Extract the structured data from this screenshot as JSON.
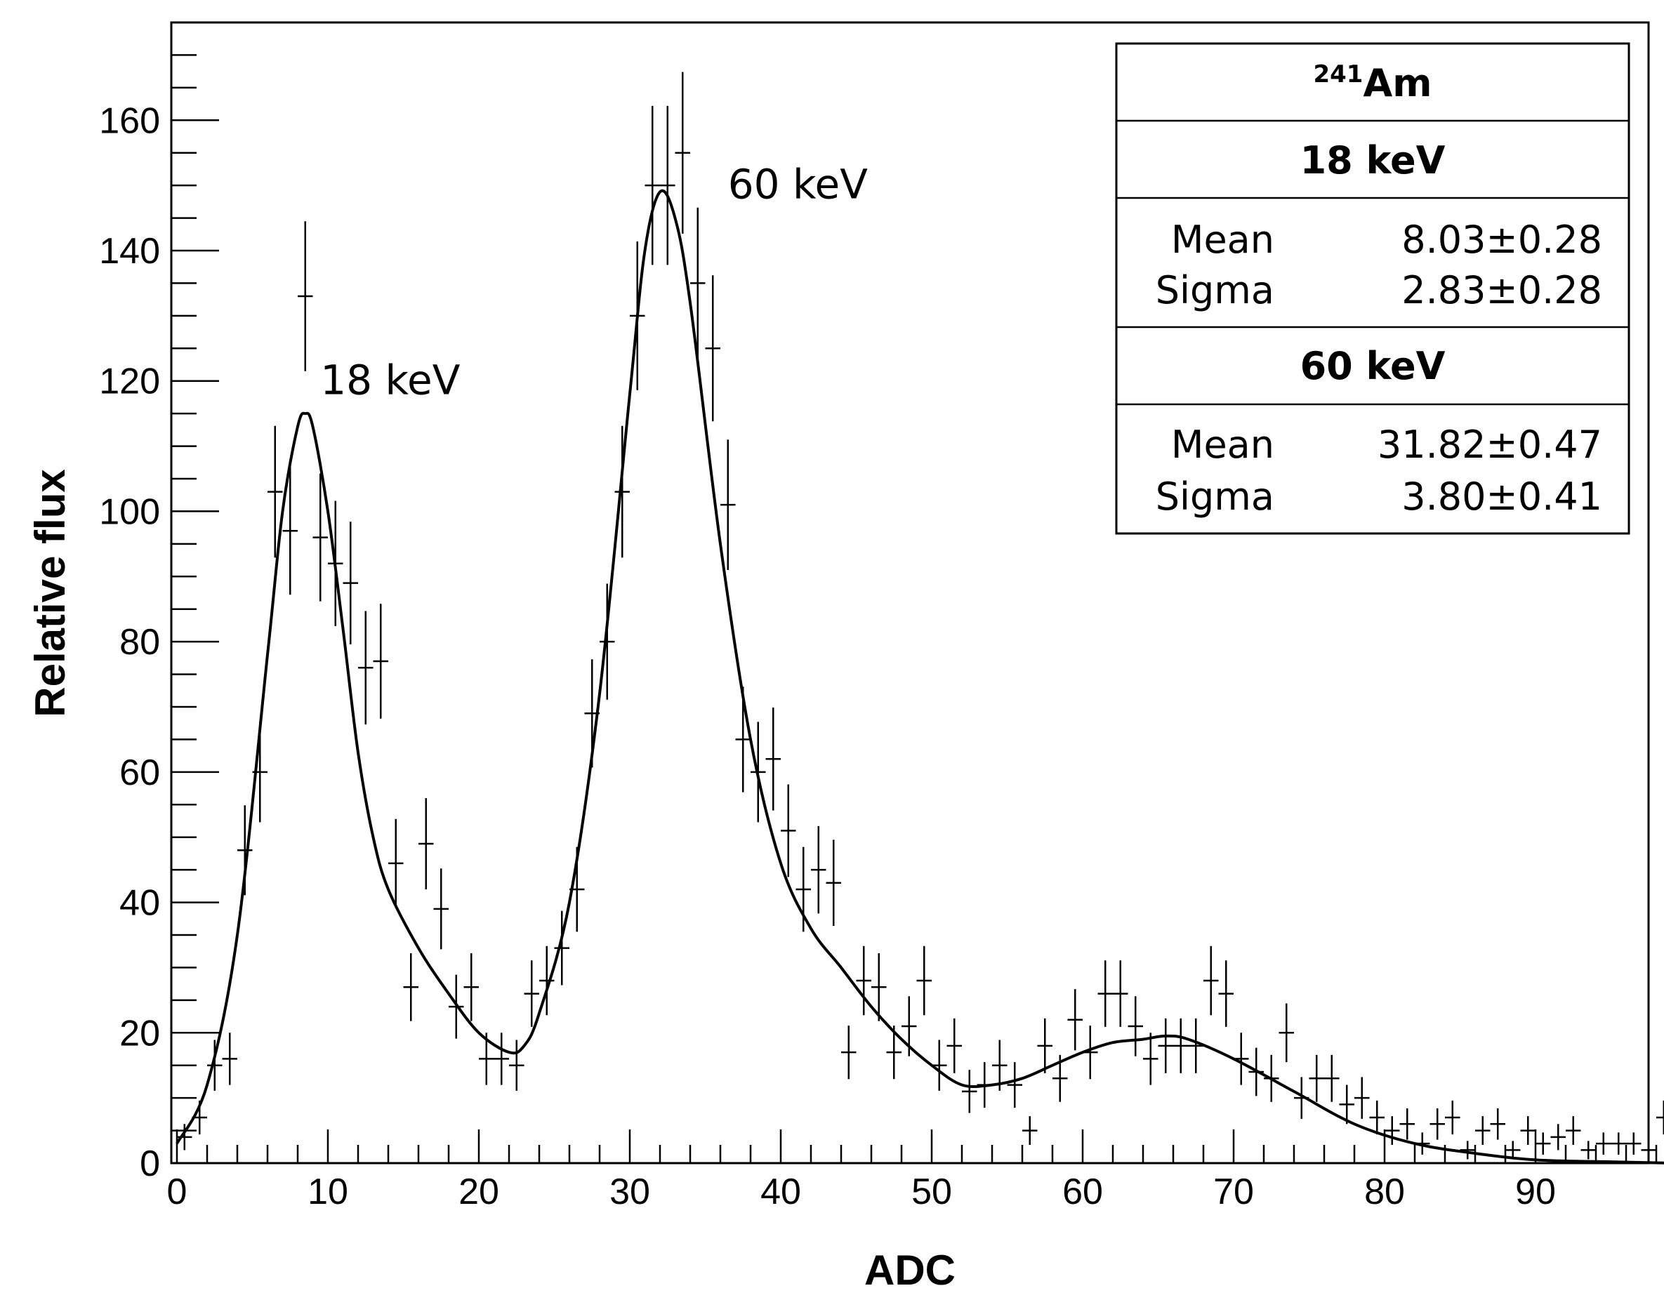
{
  "chart_data": {
    "type": "scatter",
    "title": "",
    "xlabel": "ADC",
    "ylabel": "Relative flux",
    "xlim": [
      0,
      99
    ],
    "ylim": [
      0,
      175
    ],
    "x_ticks": [
      0,
      10,
      20,
      30,
      40,
      50,
      60,
      70,
      80,
      90
    ],
    "y_ticks": [
      0,
      20,
      40,
      60,
      80,
      100,
      120,
      140,
      160
    ],
    "series": [
      {
        "name": "data",
        "style": "error-bar crosses",
        "x": [
          0.5,
          1.5,
          2.5,
          3.5,
          4.5,
          5.5,
          6.5,
          7.5,
          8.5,
          9.5,
          10.5,
          11.5,
          12.5,
          13.5,
          14.5,
          15.5,
          16.5,
          17.5,
          18.5,
          19.5,
          20.5,
          21.5,
          22.5,
          23.5,
          24.5,
          25.5,
          26.5,
          27.5,
          28.5,
          29.5,
          30.5,
          31.5,
          32.5,
          33.5,
          34.5,
          35.5,
          36.5,
          37.5,
          38.5,
          39.5,
          40.5,
          41.5,
          42.5,
          43.5,
          44.5,
          45.5,
          46.5,
          47.5,
          48.5,
          49.5,
          50.5,
          51.5,
          52.5,
          53.5,
          54.5,
          55.5,
          56.5,
          57.5,
          58.5,
          59.5,
          60.5,
          61.5,
          62.5,
          63.5,
          64.5,
          65.5,
          66.5,
          67.5,
          68.5,
          69.5,
          70.5,
          71.5,
          72.5,
          73.5,
          74.5,
          75.5,
          76.5,
          77.5,
          78.5,
          79.5,
          80.5,
          81.5,
          82.5,
          83.5,
          84.5,
          85.5,
          86.5,
          87.5,
          88.5,
          89.5,
          90.5,
          91.5,
          92.5,
          93.5,
          94.5,
          95.5,
          96.5,
          97.5,
          98.5
        ],
        "y": [
          4,
          7,
          15,
          16,
          48,
          60,
          103,
          97,
          133,
          96,
          92,
          89,
          76,
          77,
          46,
          27,
          49,
          39,
          24,
          27,
          16,
          16,
          15,
          26,
          28,
          33,
          42,
          69,
          80,
          103,
          130,
          150,
          150,
          155,
          135,
          125,
          101,
          65,
          60,
          62,
          51,
          42,
          45,
          43,
          17,
          28,
          27,
          17,
          21,
          28,
          15,
          18,
          11,
          12,
          15,
          12,
          5,
          18,
          13,
          22,
          17,
          26,
          26,
          21,
          16,
          18,
          18,
          18,
          28,
          26,
          16,
          14,
          13,
          20,
          10,
          13,
          13,
          9,
          10,
          7,
          5,
          6,
          3,
          6,
          7,
          2,
          5,
          6,
          2,
          5,
          3,
          4,
          5,
          2,
          3,
          3,
          3,
          2,
          7
        ],
        "yerr": [
          2,
          2.6,
          3.9,
          4,
          6.9,
          7.7,
          10.1,
          9.8,
          11.5,
          9.8,
          9.6,
          9.4,
          8.7,
          8.8,
          6.8,
          5.2,
          7,
          6.2,
          4.9,
          5.2,
          4,
          4,
          3.9,
          5.1,
          5.3,
          5.7,
          6.5,
          8.3,
          8.9,
          10.1,
          11.4,
          12.2,
          12.2,
          12.4,
          11.6,
          11.2,
          10,
          8.1,
          7.7,
          7.9,
          7.1,
          6.5,
          6.7,
          6.6,
          4.1,
          5.3,
          5.2,
          4.1,
          4.6,
          5.3,
          3.9,
          4.2,
          3.3,
          3.5,
          3.9,
          3.5,
          2.2,
          4.2,
          3.6,
          4.7,
          4.1,
          5.1,
          5.1,
          4.6,
          4,
          4.2,
          4.2,
          4.2,
          5.3,
          5.1,
          4,
          3.7,
          3.6,
          4.5,
          3.2,
          3.6,
          3.6,
          3,
          3.2,
          2.6,
          2.2,
          2.4,
          1.7,
          2.4,
          2.6,
          1.4,
          2.2,
          2.4,
          1.4,
          2.2,
          1.7,
          2,
          2.2,
          1.4,
          1.7,
          1.7,
          1.7,
          1.4,
          2.6
        ]
      },
      {
        "name": "fit",
        "style": "smooth curve",
        "x": [
          0,
          2,
          4,
          6,
          7,
          8,
          8.5,
          9,
          10,
          11,
          12,
          13,
          14,
          16,
          18,
          20,
          22,
          23,
          24,
          26,
          28,
          30,
          31,
          32,
          33,
          34,
          36,
          38,
          40,
          42,
          44,
          46,
          48,
          50,
          52,
          54,
          56,
          58,
          60,
          62,
          64,
          65.5,
          67,
          70,
          74,
          78,
          82,
          86,
          90,
          95,
          99
        ],
        "y": [
          3,
          12,
          35,
          78,
          100,
          113,
          115,
          113,
          100,
          82,
          63,
          50,
          42,
          33,
          26,
          20,
          17,
          18,
          23,
          40,
          72,
          118,
          140,
          149,
          145,
          132,
          95,
          65,
          46,
          36,
          30,
          24,
          19,
          15,
          12,
          12,
          13,
          15,
          17,
          18.5,
          19,
          19.5,
          19,
          16,
          11,
          6,
          3,
          1.5,
          0.5,
          0.2,
          0
        ]
      }
    ],
    "annotations": [
      {
        "text": "18 keV",
        "x": 9.5,
        "y": 118
      },
      {
        "text": "60 keV",
        "x": 36.5,
        "y": 148
      }
    ]
  },
  "stats_box": {
    "title_sup": "241",
    "title_main": "Am",
    "section1": {
      "header": "18 keV",
      "mean_label": "Mean",
      "mean_value": "8.03±0.28",
      "sigma_label": "Sigma",
      "sigma_value": "2.83±0.28"
    },
    "section2": {
      "header": "60 keV",
      "mean_label": "Mean",
      "mean_value": "31.82±0.47",
      "sigma_label": "Sigma",
      "sigma_value": "3.80±0.41"
    }
  }
}
